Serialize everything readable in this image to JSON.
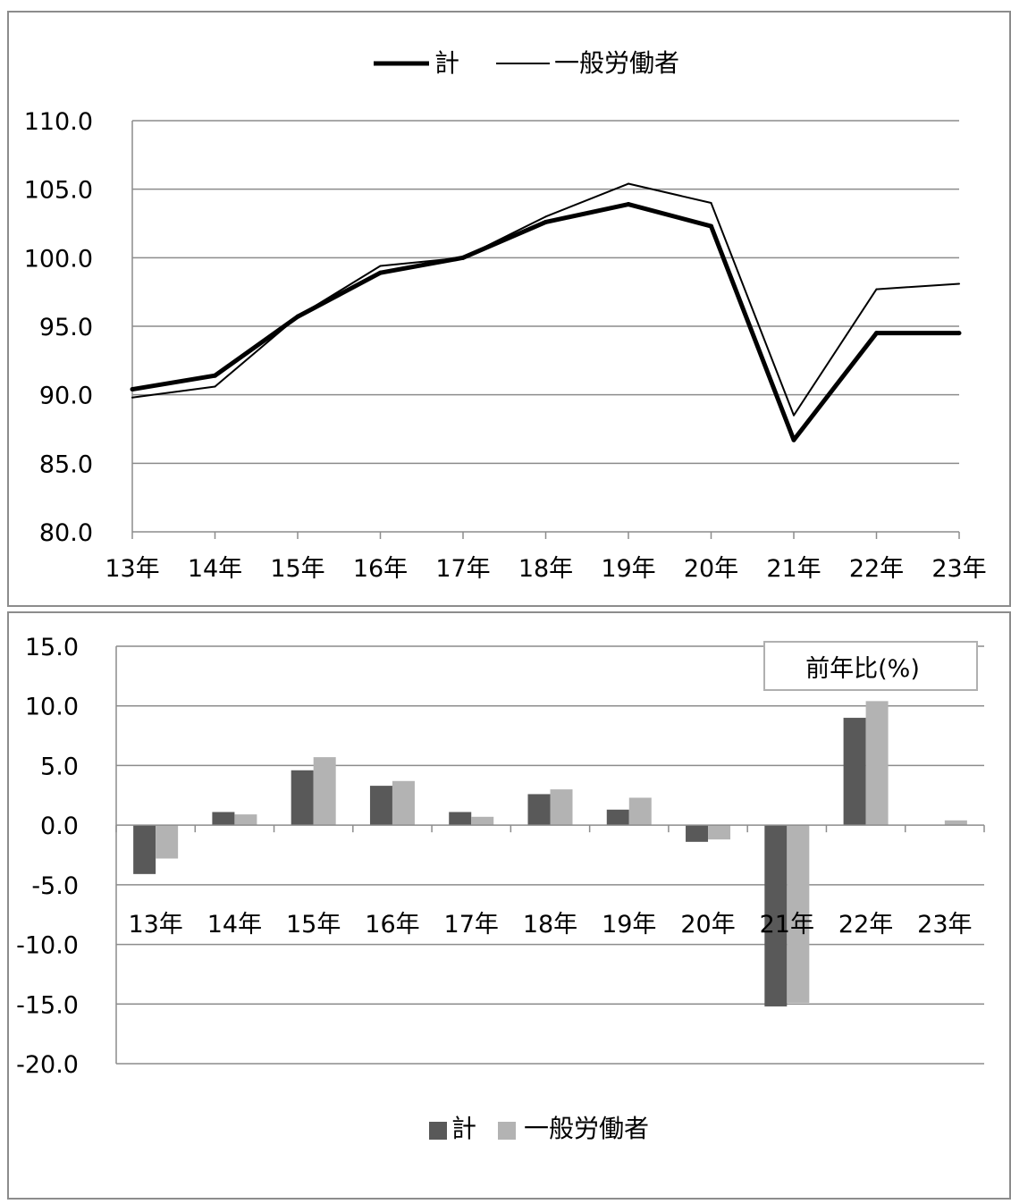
{
  "chart_data": [
    {
      "type": "line",
      "categories": [
        "13年",
        "14年",
        "15年",
        "16年",
        "17年",
        "18年",
        "19年",
        "20年",
        "21年",
        "22年",
        "23年"
      ],
      "y_ticks": [
        "80.0",
        "85.0",
        "90.0",
        "95.0",
        "100.0",
        "105.0",
        "110.0"
      ],
      "ylim": [
        80,
        110
      ],
      "grid": true,
      "legend_position": "top",
      "series": [
        {
          "name": "計",
          "values": [
            90.4,
            91.4,
            95.7,
            98.9,
            100.0,
            102.6,
            103.9,
            102.3,
            86.7,
            94.5,
            94.5
          ],
          "color": "#000000",
          "style": "thick"
        },
        {
          "name": "一般労働者",
          "values": [
            89.8,
            90.6,
            95.7,
            99.4,
            100.0,
            103.0,
            105.4,
            104.0,
            88.5,
            97.7,
            98.1
          ],
          "color": "#000000",
          "style": "thin"
        }
      ]
    },
    {
      "type": "bar",
      "title": "前年比(%)",
      "categories": [
        "13年",
        "14年",
        "15年",
        "16年",
        "17年",
        "18年",
        "19年",
        "20年",
        "21年",
        "22年",
        "23年"
      ],
      "y_ticks": [
        "-20.0",
        "-15.0",
        "-10.0",
        "-5.0",
        "0.0",
        "5.0",
        "10.0",
        "15.0"
      ],
      "ylim": [
        -20,
        15
      ],
      "grid": true,
      "legend_position": "bottom",
      "series": [
        {
          "name": "計",
          "values": [
            -4.1,
            1.1,
            4.6,
            3.3,
            1.1,
            2.6,
            1.3,
            -1.4,
            -15.2,
            9.0,
            0.0
          ],
          "color": "#595959"
        },
        {
          "name": "一般労働者",
          "values": [
            -2.8,
            0.9,
            5.7,
            3.7,
            0.7,
            3.0,
            2.3,
            -1.2,
            -14.9,
            10.4,
            0.4
          ],
          "color": "#b3b3b3"
        }
      ]
    }
  ]
}
